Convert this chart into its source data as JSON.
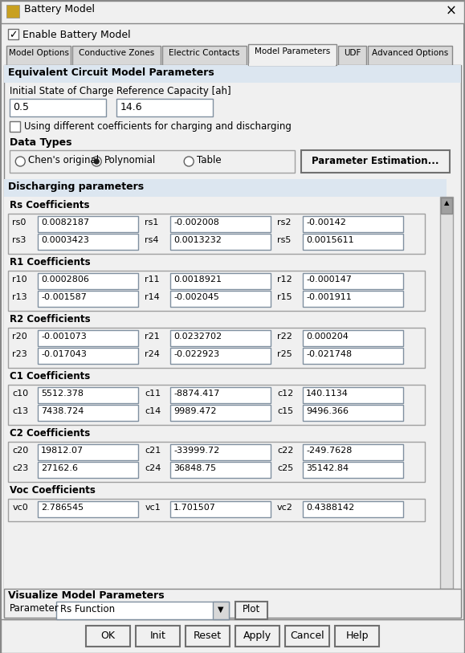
{
  "title": "Battery Model",
  "bg_color": "#f0f0f0",
  "dialog_bg": "#f0f0f0",
  "white": "#ffffff",
  "tab_active": "Model Parameters",
  "tabs": [
    "Model Options",
    "Conductive Zones",
    "Electric Contacts",
    "Model Parameters",
    "UDF",
    "Advanced Options"
  ],
  "enable_battery_model": true,
  "section_title": "Equivalent Circuit Model Parameters",
  "initial_soc_label": "Initial State of Charge",
  "ref_cap_label": "Reference Capacity [ah]",
  "initial_soc_value": "0.5",
  "ref_cap_value": "14.6",
  "checkbox_label": "Using different coefficients for charging and discharging",
  "data_types_label": "Data Types",
  "radio_options": [
    "Chen's original",
    "Polynomial",
    "Table"
  ],
  "radio_selected": 1,
  "param_est_btn": "Parameter Estimation...",
  "discharging_label": "Discharging parameters",
  "groups": [
    {
      "name": "Rs Coefficients",
      "rows": [
        [
          [
            "rs0",
            "0.0082187"
          ],
          [
            "rs1",
            "-0.002008"
          ],
          [
            "rs2",
            "-0.00142"
          ]
        ],
        [
          [
            "rs3",
            "0.0003423"
          ],
          [
            "rs4",
            "0.0013232"
          ],
          [
            "rs5",
            "0.0015611"
          ]
        ]
      ]
    },
    {
      "name": "R1 Coefficients",
      "rows": [
        [
          [
            "r10",
            "0.0002806"
          ],
          [
            "r11",
            "0.0018921"
          ],
          [
            "r12",
            "-0.000147"
          ]
        ],
        [
          [
            "r13",
            "-0.001587"
          ],
          [
            "r14",
            "-0.002045"
          ],
          [
            "r15",
            "-0.001911"
          ]
        ]
      ]
    },
    {
      "name": "R2 Coefficients",
      "rows": [
        [
          [
            "r20",
            "-0.001073"
          ],
          [
            "r21",
            "0.0232702"
          ],
          [
            "r22",
            "0.000204"
          ]
        ],
        [
          [
            "r23",
            "-0.017043"
          ],
          [
            "r24",
            "-0.022923"
          ],
          [
            "r25",
            "-0.021748"
          ]
        ]
      ]
    },
    {
      "name": "C1 Coefficients",
      "rows": [
        [
          [
            "c10",
            "5512.378"
          ],
          [
            "c11",
            "-8874.417"
          ],
          [
            "c12",
            "140.1134"
          ]
        ],
        [
          [
            "c13",
            "7438.724"
          ],
          [
            "c14",
            "9989.472"
          ],
          [
            "c15",
            "9496.366"
          ]
        ]
      ]
    },
    {
      "name": "C2 Coefficients",
      "rows": [
        [
          [
            "c20",
            "19812.07"
          ],
          [
            "c21",
            "-33999.72"
          ],
          [
            "c22",
            "-249.7628"
          ]
        ],
        [
          [
            "c23",
            "27162.6"
          ],
          [
            "c24",
            "36848.75"
          ],
          [
            "c25",
            "35142.84"
          ]
        ]
      ]
    },
    {
      "name": "Voc Coefficients",
      "rows": [
        [
          [
            "vc0",
            "2.786545"
          ],
          [
            "vc1",
            "1.701507"
          ],
          [
            "vc2",
            "0.4388142"
          ]
        ]
      ]
    }
  ],
  "visualize_label": "Visualize Model Parameters",
  "param_dropdown": "Rs Function",
  "plot_btn": "Plot",
  "bottom_buttons": [
    "OK",
    "Init",
    "Reset",
    "Apply",
    "Cancel",
    "Help"
  ],
  "scrollbar_color": "#a0a0a0",
  "border_color": "#b0b0b0",
  "group_bg": "#e8e8e8",
  "input_bg": "#ffffff",
  "label_color": "#000000",
  "bold_color": "#000000",
  "section_bg": "#dce6f0",
  "tab_bg": "#d4d0c8",
  "active_tab_bg": "#f0f0f0"
}
